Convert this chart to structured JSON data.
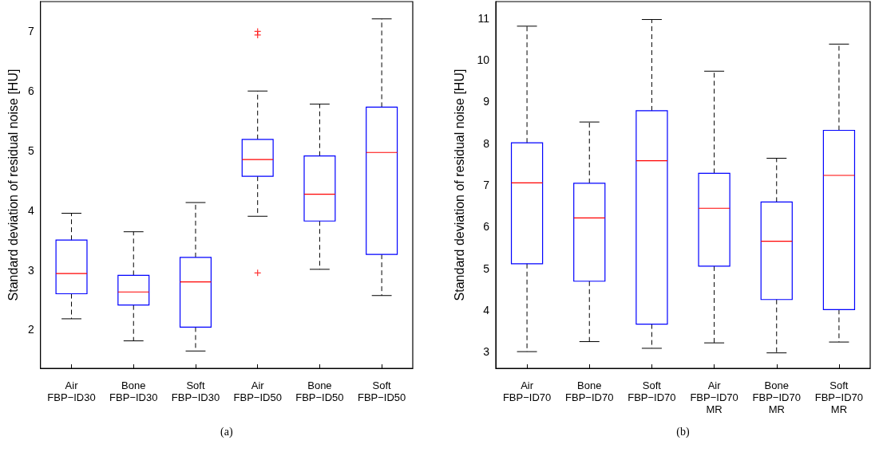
{
  "chart_data": [
    {
      "type": "box",
      "xlabel": "(a)",
      "ylabel": "Standard deviation of residual noise [HU]",
      "categories": [
        "Air\nFBP−ID30",
        "Bone\nFBP−ID30",
        "Soft\nFBP−ID30",
        "Air\nFBP−ID50",
        "Bone\nFBP−ID50",
        "Soft\nFBP−ID50"
      ],
      "ylim": [
        1.35,
        7.5
      ],
      "yticks": [
        2,
        3,
        4,
        5,
        6,
        7
      ],
      "color": "#0000ff",
      "boxes": [
        {
          "low": 2.18,
          "q1": 2.6,
          "median": 2.94,
          "q3": 3.5,
          "high": 3.95
        },
        {
          "low": 1.81,
          "q1": 2.41,
          "median": 2.63,
          "q3": 2.91,
          "high": 3.64
        },
        {
          "low": 1.64,
          "q1": 2.04,
          "median": 2.8,
          "q3": 3.21,
          "high": 4.13
        },
        {
          "low": 3.9,
          "q1": 4.57,
          "median": 4.85,
          "q3": 5.19,
          "high": 6.0,
          "outliers": [
            7.0,
            6.94,
            2.95
          ]
        },
        {
          "low": 3.01,
          "q1": 3.82,
          "median": 4.27,
          "q3": 4.91,
          "high": 5.78
        },
        {
          "low": 2.57,
          "q1": 3.26,
          "median": 4.97,
          "q3": 5.73,
          "high": 7.21
        }
      ]
    },
    {
      "type": "box",
      "xlabel": "(b)",
      "ylabel": "Standard deviation of residual noise [HU]",
      "categories": [
        "Air\nFBP−ID70",
        "Bone\nFBP−ID70",
        "Soft\nFBP−ID70",
        "Air\nFBP−ID70\nMR",
        "Bone\nFBP−ID70\nMR",
        "Soft\nFBP−ID70\nMR"
      ],
      "ylim": [
        2.6,
        11.4
      ],
      "yticks": [
        3,
        4,
        5,
        6,
        7,
        8,
        9,
        10,
        11
      ],
      "color": "#0000ff",
      "boxes": [
        {
          "low": 3.0,
          "q1": 5.11,
          "median": 7.05,
          "q3": 8.01,
          "high": 10.81
        },
        {
          "low": 3.24,
          "q1": 4.69,
          "median": 6.21,
          "q3": 7.04,
          "high": 8.51
        },
        {
          "low": 3.08,
          "q1": 3.66,
          "median": 7.58,
          "q3": 8.78,
          "high": 10.97
        },
        {
          "low": 3.21,
          "q1": 5.05,
          "median": 6.44,
          "q3": 7.28,
          "high": 9.73
        },
        {
          "low": 2.97,
          "q1": 4.25,
          "median": 5.65,
          "q3": 6.59,
          "high": 7.64
        },
        {
          "low": 3.23,
          "q1": 4.01,
          "median": 7.23,
          "q3": 8.31,
          "high": 10.38
        }
      ]
    }
  ]
}
